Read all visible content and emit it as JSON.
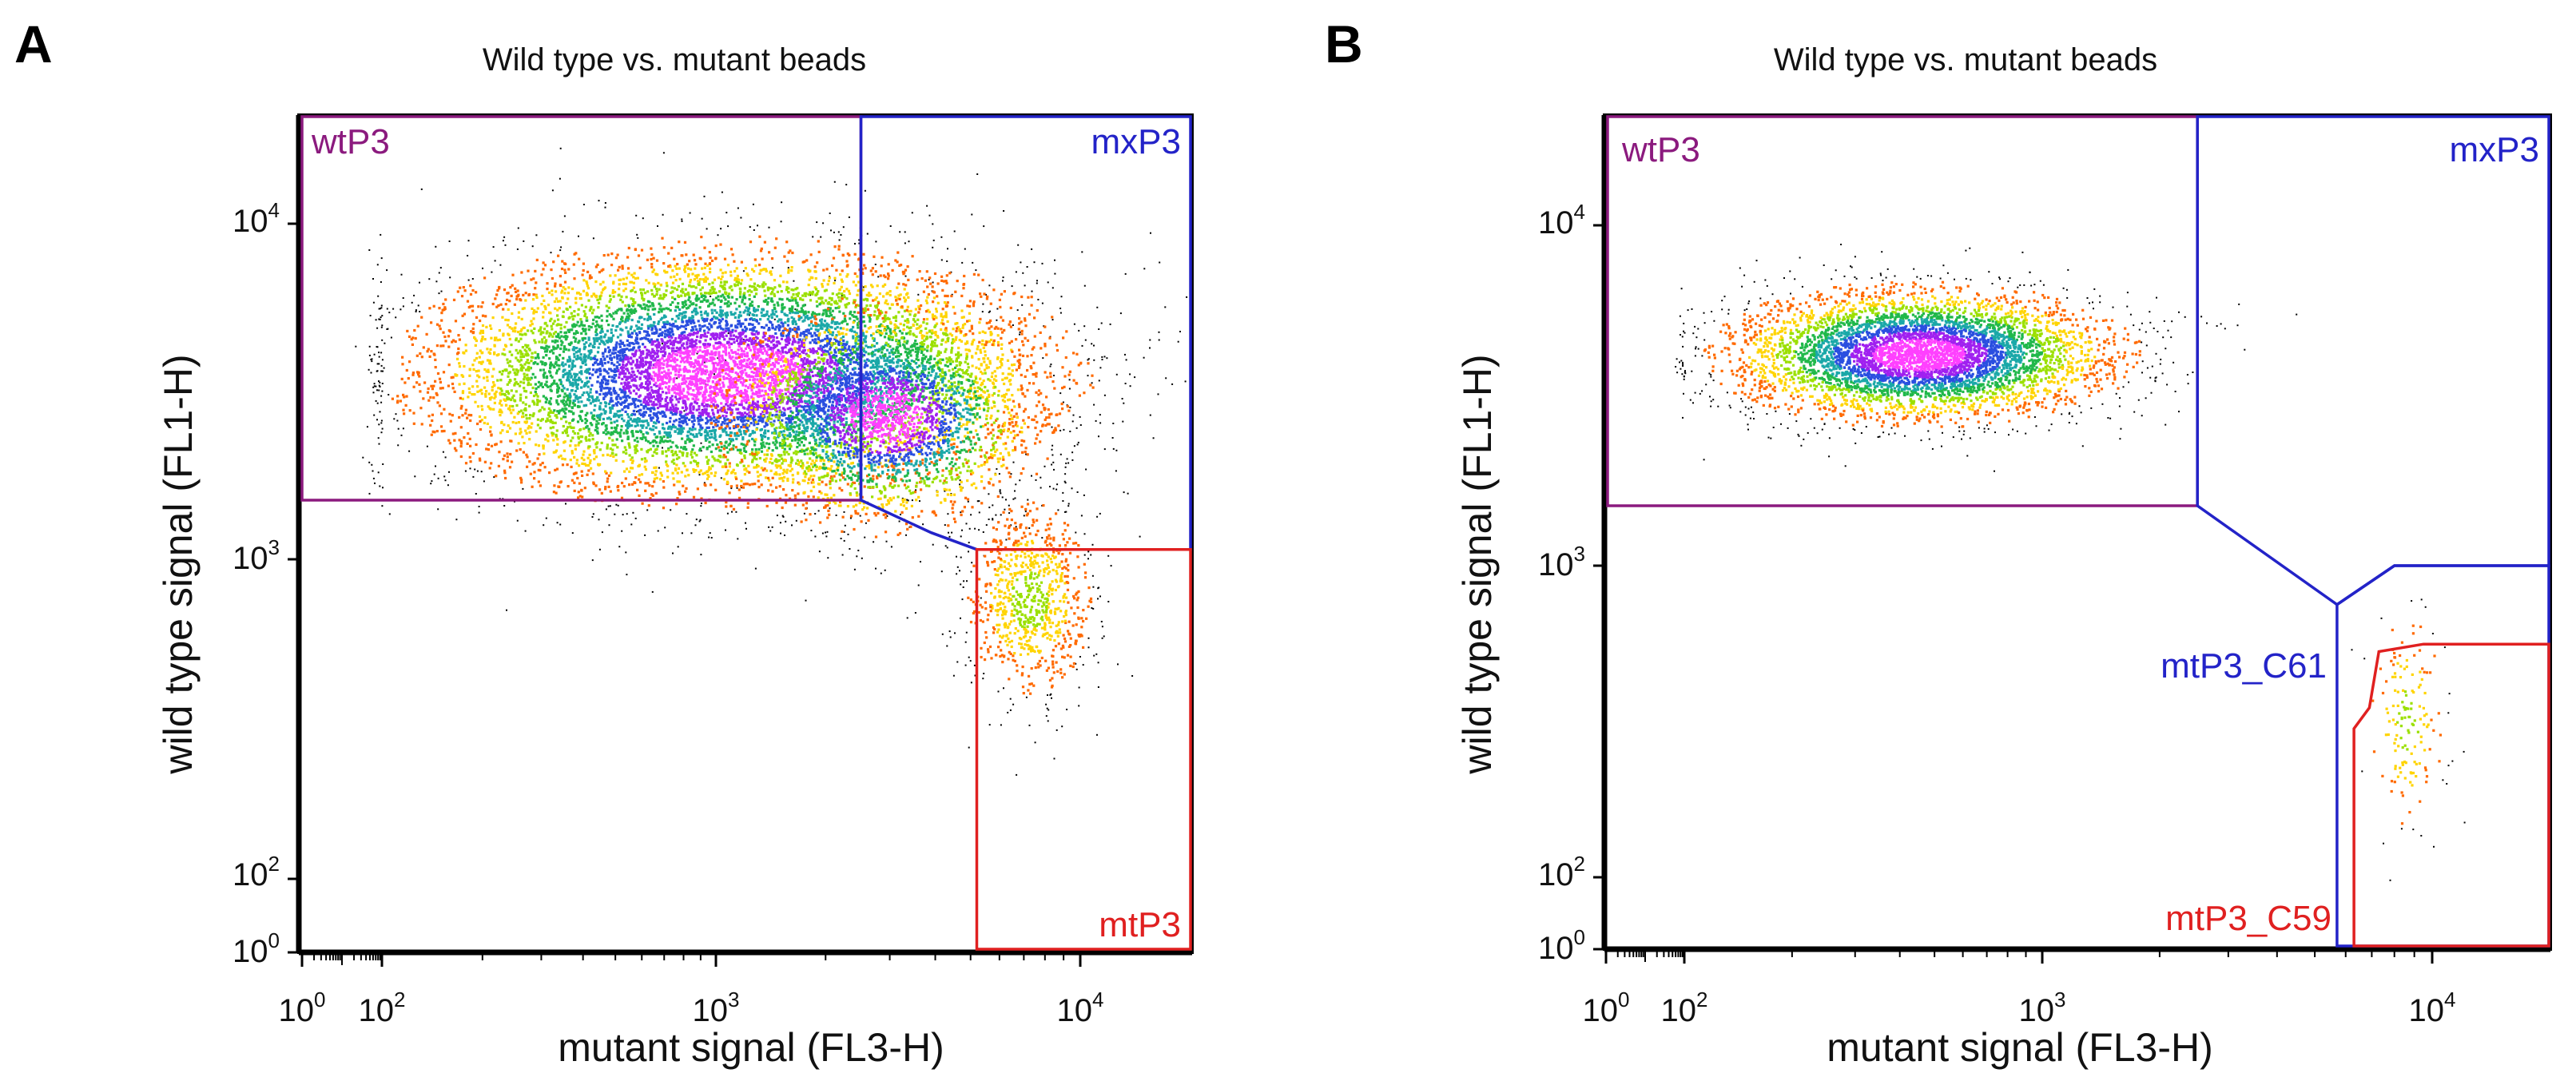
{
  "panels": [
    {
      "letter": "A",
      "title": "Wild type vs. mutant beads",
      "xlabel": "mutant signal (FL3-H)",
      "ylabel": "wild type signal (FL1-H)"
    },
    {
      "letter": "B",
      "title": "Wild type vs. mutant beads",
      "xlabel": "mutant signal (FL3-H)",
      "ylabel": "wild type signal (FL1-H)"
    }
  ],
  "tick_labels": {
    "x": [
      {
        "base": "10",
        "exp": "0"
      },
      {
        "base": "10",
        "exp": "2"
      },
      {
        "base": "10",
        "exp": "3"
      },
      {
        "base": "10",
        "exp": "4"
      }
    ],
    "y": [
      {
        "base": "10",
        "exp": "0"
      },
      {
        "base": "10",
        "exp": "2"
      },
      {
        "base": "10",
        "exp": "3"
      },
      {
        "base": "10",
        "exp": "4"
      }
    ]
  },
  "colors": {
    "wt_gate": "#8B1A7E",
    "mx_gate": "#2323C8",
    "mt_gate": "#E02020",
    "density_scale": [
      "#000000",
      "#ff6a00",
      "#ffd400",
      "#9be000",
      "#20b84a",
      "#1aa8a8",
      "#2a4fe0",
      "#a020f0",
      "#ff40ff"
    ]
  },
  "chart_data": [
    {
      "type": "scatter",
      "subtype": "flow-cytometry density plot with gates",
      "panel": "A",
      "title": "Wild type vs. mutant beads",
      "xlabel": "mutant signal (FL3-H)",
      "ylabel": "wild type signal (FL1-H)",
      "x_scale": "logicle",
      "y_scale": "logicle",
      "xlim": [
        0,
        20000
      ],
      "ylim": [
        0,
        20000
      ],
      "x_ticks": [
        1,
        100,
        1000,
        10000
      ],
      "y_ticks": [
        1,
        100,
        1000,
        10000
      ],
      "grid": false,
      "populations": [
        {
          "center": [
            1050,
            3600
          ],
          "spread_log": [
            0.42,
            0.17
          ],
          "count": 9000
        },
        {
          "center": [
            2900,
            2700
          ],
          "spread_log": [
            0.2,
            0.15
          ],
          "count": 2600
        },
        {
          "center": [
            7200,
            750
          ],
          "spread_log": [
            0.09,
            0.16
          ],
          "count": 900
        }
      ],
      "gates": [
        {
          "name": "wtP3",
          "color": "#8B1A7E",
          "polygon": [
            [
              1,
              20000
            ],
            [
              2500,
              20000
            ],
            [
              2500,
              1500
            ],
            [
              1,
              1500
            ]
          ],
          "label_pos": "top-left"
        },
        {
          "name": "mxP3",
          "color": "#2323C8",
          "polygon": [
            [
              2500,
              20000
            ],
            [
              20000,
              20000
            ],
            [
              20000,
              1070
            ],
            [
              5200,
              1070
            ],
            [
              3900,
              1200
            ],
            [
              2500,
              1500
            ]
          ],
          "label_pos": "top-right"
        },
        {
          "name": "mtP3",
          "color": "#E02020",
          "polygon": [
            [
              5200,
              1070
            ],
            [
              20000,
              1070
            ],
            [
              20000,
              1
            ],
            [
              5200,
              1
            ]
          ],
          "label_pos": "bottom-right"
        }
      ]
    },
    {
      "type": "scatter",
      "subtype": "flow-cytometry density plot with gates",
      "panel": "B",
      "title": "Wild type vs. mutant beads",
      "xlabel": "mutant signal (FL3-H)",
      "ylabel": "wild type signal (FL1-H)",
      "x_scale": "logicle",
      "y_scale": "logicle",
      "xlim": [
        0,
        20000
      ],
      "ylim": [
        0,
        20000
      ],
      "x_ticks": [
        1,
        100,
        1000,
        10000
      ],
      "y_ticks": [
        1,
        100,
        1000,
        10000
      ],
      "grid": false,
      "populations": [
        {
          "center": [
            450,
            4200
          ],
          "spread_log": [
            0.25,
            0.09
          ],
          "count": 5200
        },
        {
          "center": [
            8600,
            320
          ],
          "spread_log": [
            0.05,
            0.18
          ],
          "count": 160
        }
      ],
      "gates": [
        {
          "name": "wtP3",
          "color": "#8B1A7E",
          "polygon": [
            [
              1,
              20000
            ],
            [
              2500,
              20000
            ],
            [
              2500,
              1500
            ],
            [
              1,
              1500
            ]
          ],
          "label_pos": "top-left"
        },
        {
          "name": "mxP3",
          "color": "#2323C8",
          "polygon": [
            [
              2500,
              20000
            ],
            [
              20000,
              20000
            ],
            [
              20000,
              1000
            ],
            [
              8000,
              1000
            ],
            [
              5700,
              750
            ],
            [
              2500,
              1500
            ]
          ],
          "label_pos": "top-right"
        },
        {
          "name": "mtP3_C61",
          "color": "#2323C8",
          "polygon": [
            [
              5700,
              750
            ],
            [
              5700,
              1
            ],
            [
              20000,
              1
            ],
            [
              20000,
              1000
            ],
            [
              8000,
              1000
            ]
          ],
          "label_pos": "middle-left"
        },
        {
          "name": "mtP3_C59",
          "color": "#E02020",
          "polygon": [
            [
              6300,
              1
            ],
            [
              6300,
              300
            ],
            [
              6900,
              350
            ],
            [
              7300,
              530
            ],
            [
              9500,
              560
            ],
            [
              20000,
              560
            ],
            [
              20000,
              1
            ]
          ],
          "label_pos": "bottom-left"
        }
      ]
    }
  ]
}
